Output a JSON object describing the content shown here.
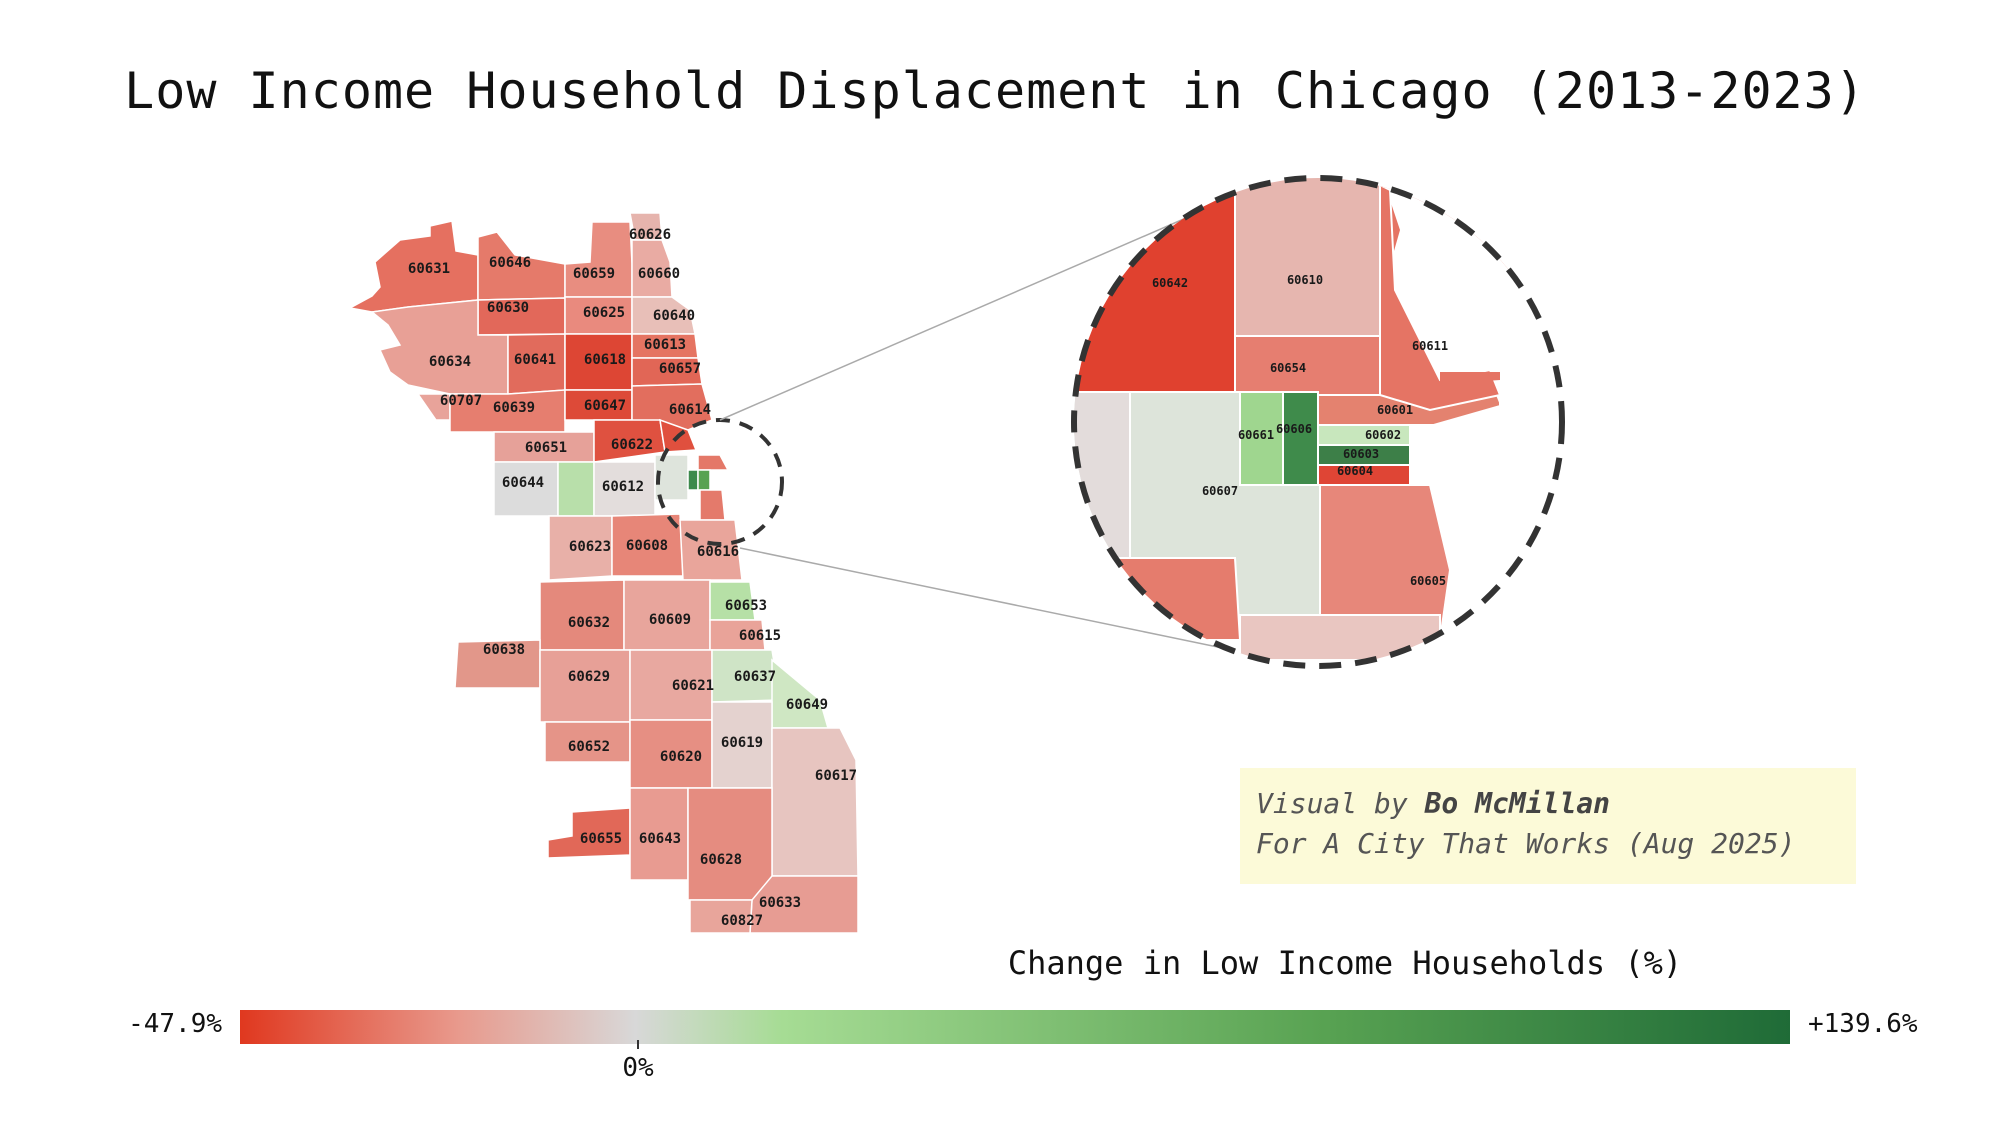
{
  "title": "Low Income Household Displacement in Chicago (2013-2023)",
  "credit": {
    "line1_prefix": "Visual by ",
    "author": "Bo McMillan",
    "line2": "For A City That Works (Aug 2025)"
  },
  "legend": {
    "title": "Change in Low Income Households (%)",
    "min_label": "-47.9%",
    "max_label": "+139.6%",
    "zero_label": "0%",
    "min_value": -47.9,
    "max_value": 139.6,
    "colors": {
      "min": "#e0381f",
      "mid": "#d8d8d8",
      "max": "#1f6b37"
    }
  },
  "zip_codes": {
    "main": [
      "60626",
      "60631",
      "60646",
      "60659",
      "60660",
      "60630",
      "60625",
      "60640",
      "60634",
      "60641",
      "60618",
      "60613",
      "60657",
      "60707",
      "60639",
      "60647",
      "60614",
      "60651",
      "60622",
      "60644",
      "60612",
      "60623",
      "60608",
      "60616",
      "60653",
      "60632",
      "60609",
      "60615",
      "60638",
      "60629",
      "60621",
      "60637",
      "60649",
      "60652",
      "60620",
      "60619",
      "60617",
      "60655",
      "60643",
      "60628",
      "60633",
      "60827"
    ],
    "inset": [
      "60642",
      "60610",
      "60654",
      "60611",
      "60601",
      "60661",
      "60606",
      "60602",
      "60603",
      "60604",
      "60607",
      "60605"
    ]
  }
}
